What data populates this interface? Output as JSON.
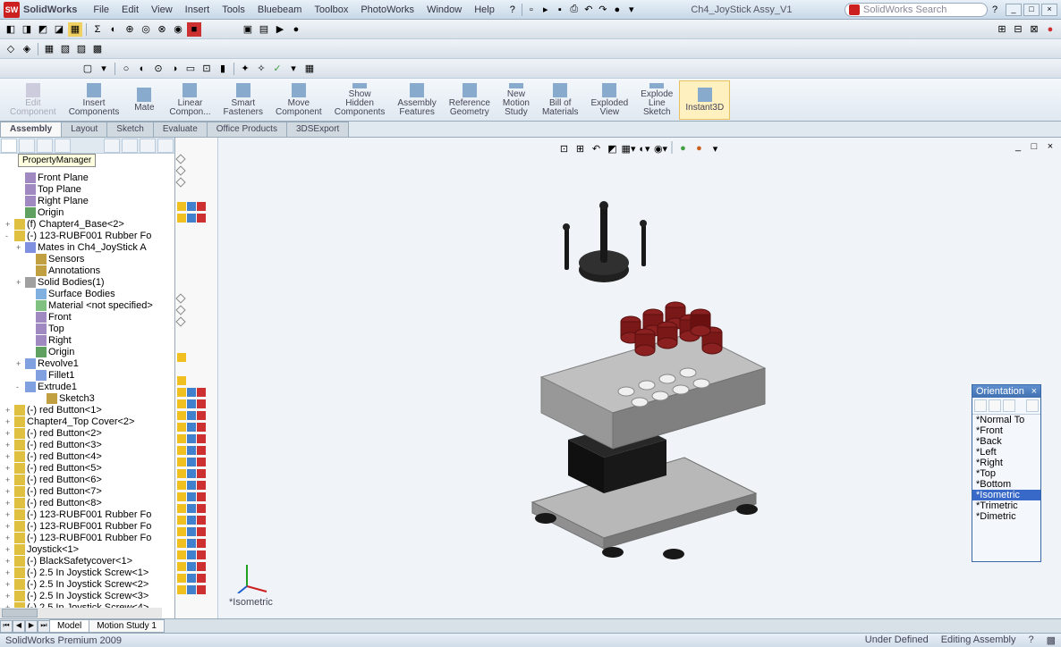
{
  "app": {
    "name": "SolidWorks",
    "doc_title": "Ch4_JoyStick Assy_V1",
    "search_placeholder": "SolidWorks Search"
  },
  "menubar": [
    "File",
    "Edit",
    "View",
    "Insert",
    "Tools",
    "Bluebeam",
    "Toolbox",
    "PhotoWorks",
    "Window",
    "Help"
  ],
  "ribbon": [
    {
      "label": "Edit\nComponent",
      "disabled": true
    },
    {
      "label": "Insert\nComponents"
    },
    {
      "label": "Mate"
    },
    {
      "label": "Linear\nCompon..."
    },
    {
      "label": "Smart\nFasteners"
    },
    {
      "label": "Move\nComponent"
    },
    {
      "label": "Show\nHidden\nComponents"
    },
    {
      "label": "Assembly\nFeatures"
    },
    {
      "label": "Reference\nGeometry"
    },
    {
      "label": "New\nMotion\nStudy"
    },
    {
      "label": "Bill of\nMaterials"
    },
    {
      "label": "Exploded\nView"
    },
    {
      "label": "Explode\nLine\nSketch"
    },
    {
      "label": "Instant3D",
      "active": true
    }
  ],
  "tabs": [
    "Assembly",
    "Layout",
    "Sketch",
    "Evaluate",
    "Office Products",
    "3DSExport"
  ],
  "active_tab": "Assembly",
  "panel_tooltip": "PropertyManager",
  "tree": [
    {
      "indent": 1,
      "exp": "",
      "icon": "#a088c0",
      "label": "Front Plane",
      "markers": [
        "d"
      ]
    },
    {
      "indent": 1,
      "exp": "",
      "icon": "#a088c0",
      "label": "Top Plane",
      "markers": [
        "d"
      ]
    },
    {
      "indent": 1,
      "exp": "",
      "icon": "#a088c0",
      "label": "Right Plane",
      "markers": [
        "d"
      ]
    },
    {
      "indent": 1,
      "exp": "",
      "icon": "#60a060",
      "label": "Origin",
      "markers": []
    },
    {
      "indent": 0,
      "exp": "+",
      "icon": "#e0c040",
      "label": "(f) Chapter4_Base<2>",
      "markers": [
        "y",
        "b",
        "r"
      ]
    },
    {
      "indent": 0,
      "exp": "-",
      "icon": "#e0c040",
      "label": "(-) 123-RUBF001 Rubber Fo",
      "markers": [
        "y",
        "b",
        "r"
      ]
    },
    {
      "indent": 1,
      "exp": "+",
      "icon": "#8090e0",
      "label": "Mates in Ch4_JoyStick A",
      "markers": []
    },
    {
      "indent": 2,
      "exp": "",
      "icon": "#c0a040",
      "label": "Sensors",
      "markers": []
    },
    {
      "indent": 2,
      "exp": "",
      "icon": "#c0a040",
      "label": "Annotations",
      "markers": []
    },
    {
      "indent": 1,
      "exp": "+",
      "icon": "#a0a0a0",
      "label": "Solid Bodies(1)",
      "markers": []
    },
    {
      "indent": 2,
      "exp": "",
      "icon": "#80b0e0",
      "label": "Surface Bodies",
      "markers": []
    },
    {
      "indent": 2,
      "exp": "",
      "icon": "#80c080",
      "label": "Material <not specified>",
      "markers": []
    },
    {
      "indent": 2,
      "exp": "",
      "icon": "#a088c0",
      "label": "Front",
      "markers": [
        "d"
      ]
    },
    {
      "indent": 2,
      "exp": "",
      "icon": "#a088c0",
      "label": "Top",
      "markers": [
        "d"
      ]
    },
    {
      "indent": 2,
      "exp": "",
      "icon": "#a088c0",
      "label": "Right",
      "markers": [
        "d"
      ]
    },
    {
      "indent": 2,
      "exp": "",
      "icon": "#60a060",
      "label": "Origin",
      "markers": []
    },
    {
      "indent": 1,
      "exp": "+",
      "icon": "#80a0e0",
      "label": "Revolve1",
      "markers": []
    },
    {
      "indent": 2,
      "exp": "",
      "icon": "#80a0e0",
      "label": "Fillet1",
      "markers": [
        "y"
      ]
    },
    {
      "indent": 1,
      "exp": "-",
      "icon": "#80a0e0",
      "label": "Extrude1",
      "markers": []
    },
    {
      "indent": 3,
      "exp": "",
      "icon": "#c0a040",
      "label": "Sketch3",
      "markers": [
        "y"
      ]
    },
    {
      "indent": 0,
      "exp": "+",
      "icon": "#e0c040",
      "label": "(-) red Button<1>",
      "markers": [
        "y",
        "b",
        "r"
      ]
    },
    {
      "indent": 0,
      "exp": "+",
      "icon": "#e0c040",
      "label": "Chapter4_Top Cover<2>",
      "markers": [
        "y",
        "b",
        "r"
      ]
    },
    {
      "indent": 0,
      "exp": "+",
      "icon": "#e0c040",
      "label": "(-) red Button<2>",
      "markers": [
        "y",
        "b",
        "r"
      ]
    },
    {
      "indent": 0,
      "exp": "+",
      "icon": "#e0c040",
      "label": "(-) red Button<3>",
      "markers": [
        "y",
        "b",
        "r"
      ]
    },
    {
      "indent": 0,
      "exp": "+",
      "icon": "#e0c040",
      "label": "(-) red Button<4>",
      "markers": [
        "y",
        "b",
        "r"
      ]
    },
    {
      "indent": 0,
      "exp": "+",
      "icon": "#e0c040",
      "label": "(-) red Button<5>",
      "markers": [
        "y",
        "b",
        "r"
      ]
    },
    {
      "indent": 0,
      "exp": "+",
      "icon": "#e0c040",
      "label": "(-) red Button<6>",
      "markers": [
        "y",
        "b",
        "r"
      ]
    },
    {
      "indent": 0,
      "exp": "+",
      "icon": "#e0c040",
      "label": "(-) red Button<7>",
      "markers": [
        "y",
        "b",
        "r"
      ]
    },
    {
      "indent": 0,
      "exp": "+",
      "icon": "#e0c040",
      "label": "(-) red Button<8>",
      "markers": [
        "y",
        "b",
        "r"
      ]
    },
    {
      "indent": 0,
      "exp": "+",
      "icon": "#e0c040",
      "label": "(-) 123-RUBF001 Rubber Fo",
      "markers": [
        "y",
        "b",
        "r"
      ]
    },
    {
      "indent": 0,
      "exp": "+",
      "icon": "#e0c040",
      "label": "(-) 123-RUBF001 Rubber Fo",
      "markers": [
        "y",
        "b",
        "r"
      ]
    },
    {
      "indent": 0,
      "exp": "+",
      "icon": "#e0c040",
      "label": "(-) 123-RUBF001 Rubber Fo",
      "markers": [
        "y",
        "b",
        "r"
      ]
    },
    {
      "indent": 0,
      "exp": "+",
      "icon": "#e0c040",
      "label": "Joystick<1>",
      "markers": [
        "y",
        "b",
        "r"
      ]
    },
    {
      "indent": 0,
      "exp": "+",
      "icon": "#e0c040",
      "label": "(-) BlackSafetycover<1>",
      "markers": [
        "y",
        "b",
        "r"
      ]
    },
    {
      "indent": 0,
      "exp": "+",
      "icon": "#e0c040",
      "label": "(-) 2.5 In Joystick Screw<1>",
      "markers": [
        "y",
        "b",
        "r"
      ]
    },
    {
      "indent": 0,
      "exp": "+",
      "icon": "#e0c040",
      "label": "(-) 2.5 In Joystick Screw<2>",
      "markers": [
        "y",
        "b",
        "r"
      ]
    },
    {
      "indent": 0,
      "exp": "+",
      "icon": "#e0c040",
      "label": "(-) 2.5 In Joystick Screw<3>",
      "markers": [
        "y",
        "b",
        "r"
      ]
    },
    {
      "indent": 0,
      "exp": "+",
      "icon": "#e0c040",
      "label": "(-) 2.5 In Joystick Screw<4>",
      "markers": [
        "y",
        "b",
        "r"
      ]
    }
  ],
  "view_label": "*Isometric",
  "orientation": {
    "title": "Orientation",
    "items": [
      "*Normal To",
      "*Front",
      "*Back",
      "*Left",
      "*Right",
      "*Top",
      "*Bottom",
      "*Isometric",
      "*Trimetric",
      "*Dimetric"
    ],
    "selected": "*Isometric"
  },
  "bottom_tabs": [
    "Model",
    "Motion Study 1"
  ],
  "active_bottom_tab": "Model",
  "status": {
    "left": "SolidWorks Premium 2009",
    "defined": "Under Defined",
    "state": "Editing Assembly"
  },
  "colors": {
    "button_red": "#8a2020",
    "base_gray": "#a8a8a8",
    "base_light": "#c8c8c8",
    "base_dark": "#888888",
    "black_part": "#181818",
    "hole_white": "#f0f0f0"
  }
}
